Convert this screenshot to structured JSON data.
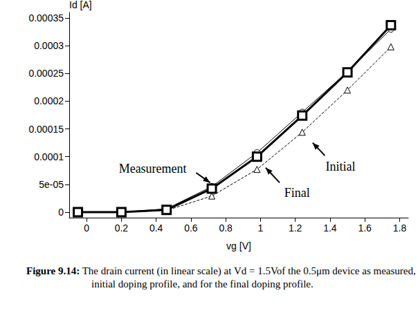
{
  "chart_data": {
    "type": "line",
    "x_label": "vg [V]",
    "y_label": "Id [A]",
    "x": [
      -0.05,
      0.2,
      0.46,
      0.72,
      0.98,
      1.24,
      1.5,
      1.75
    ],
    "series": [
      {
        "name": "Measurement",
        "color": "#000000",
        "marker": "square",
        "line_style": "solid",
        "values": [
          0,
          0,
          4e-06,
          4.24e-05,
          0.0001,
          0.000174,
          0.000252,
          0.000337
        ]
      },
      {
        "name": "Final",
        "color": "#000000",
        "marker": "circle",
        "line_style": "solid",
        "values": [
          0,
          0,
          6e-06,
          4.6e-05,
          0.000107,
          0.00018,
          0.000253,
          0.00033
        ]
      },
      {
        "name": "Initial",
        "color": "#000000",
        "marker": "triangle",
        "line_style": "dashed",
        "values": [
          0,
          0,
          3e-06,
          2.9e-05,
          7.7e-05,
          0.000144,
          0.00022,
          0.000298
        ]
      }
    ],
    "xlim": [
      -0.1,
      1.85
    ],
    "xticks": [
      0,
      0.2,
      0.4,
      0.6,
      0.8,
      1,
      1.2,
      1.4,
      1.6,
      1.8
    ],
    "ylim": [
      -1e-05,
      0.00036
    ],
    "yticks": [
      0,
      {
        "value": 5e-05,
        "label": "5e-05"
      },
      0.0001,
      0.00015,
      0.0002,
      0.00025,
      0.0003,
      0.00035
    ],
    "grid": false,
    "annotations": [
      {
        "text": "Measurement",
        "x": 0.38,
        "y": 7.9e-05,
        "from": [
          0.63,
          7.1e-05
        ],
        "to": [
          0.71,
          5.3e-05
        ]
      },
      {
        "text": "Final",
        "x": 1.21,
        "y": 3.5e-05,
        "from": [
          1.11,
          5.3e-05
        ],
        "to": [
          1.03,
          8e-05
        ]
      },
      {
        "text": "Initial",
        "x": 1.46,
        "y": 8.2e-05,
        "from": [
          1.37,
          0.000102
        ],
        "to": [
          1.3,
          0.000125
        ]
      }
    ],
    "caption": {
      "label": "Figure 9.14:",
      "text": "The drain current (in linear scale) at Vd = 1.5Vof the 0.5μm device as measured, for the initial doping profile, and for the final doping profile."
    }
  }
}
